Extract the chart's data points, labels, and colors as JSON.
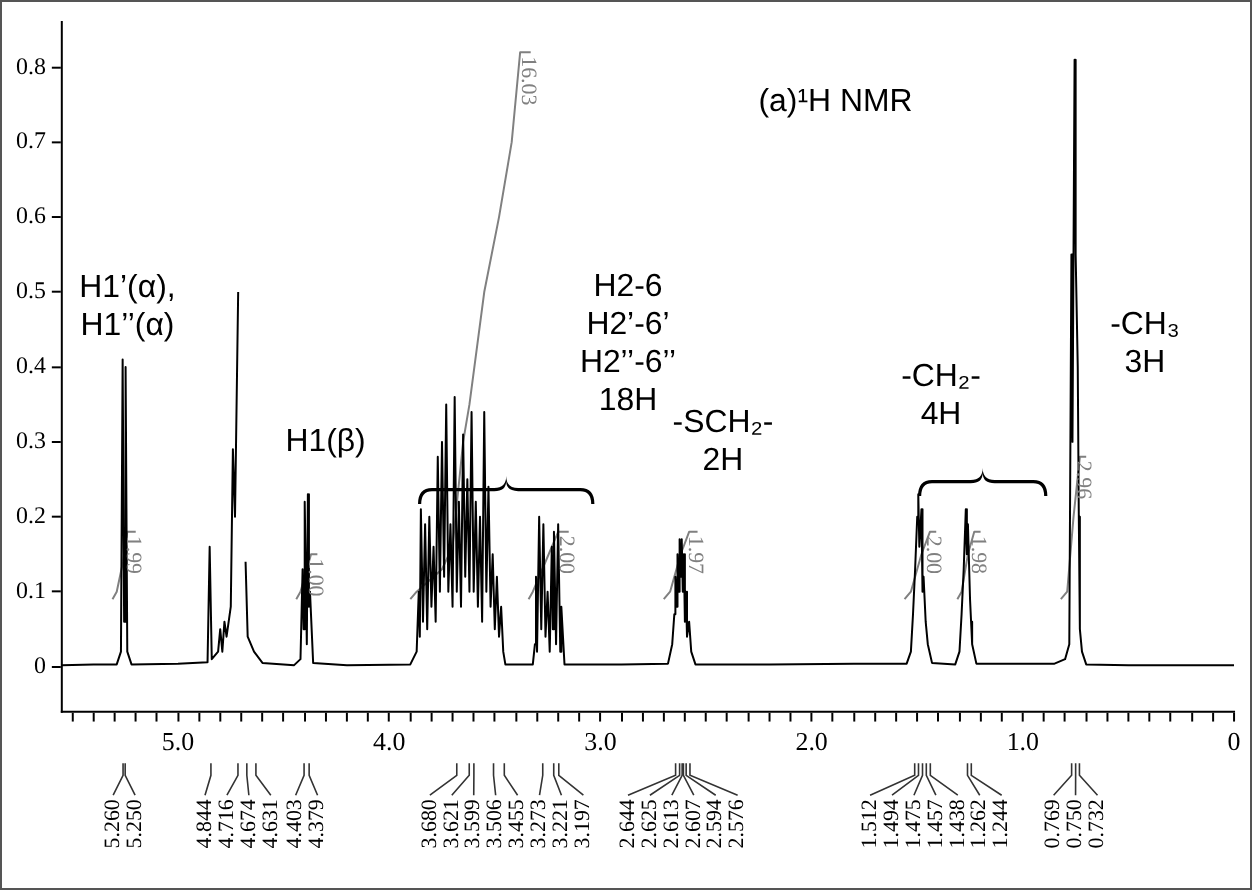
{
  "chart_data": {
    "type": "line",
    "title": "(a)¹H NMR",
    "xlim": [
      5.55,
      0
    ],
    "ylim": [
      -0.06,
      0.86
    ],
    "xticks": [
      {
        "value": 5,
        "label": "5.0"
      },
      {
        "value": 4,
        "label": "4.0"
      },
      {
        "value": 3,
        "label": "3.0"
      },
      {
        "value": 2,
        "label": "2.0"
      },
      {
        "value": 1,
        "label": "1.0"
      },
      0,
      {
        "value": 5.5,
        "label": null
      },
      {
        "value": 5.4,
        "label": null
      },
      {
        "value": 5.3,
        "label": null
      },
      {
        "value": 5.2,
        "label": null
      },
      {
        "value": 5.1,
        "label": null
      },
      {
        "value": 4.9,
        "label": null
      },
      {
        "value": 4.8,
        "label": null
      },
      {
        "value": 4.7,
        "label": null
      },
      {
        "value": 4.6,
        "label": null
      },
      {
        "value": 4.5,
        "label": null
      },
      {
        "value": 4.4,
        "label": null
      },
      {
        "value": 4.3,
        "label": null
      },
      {
        "value": 4.2,
        "label": null
      },
      {
        "value": 4.1,
        "label": null
      },
      {
        "value": 3.9,
        "label": null
      },
      {
        "value": 3.8,
        "label": null
      },
      {
        "value": 3.7,
        "label": null
      },
      {
        "value": 3.6,
        "label": null
      },
      {
        "value": 3.5,
        "label": null
      },
      {
        "value": 3.4,
        "label": null
      },
      {
        "value": 3.3,
        "label": null
      },
      {
        "value": 3.2,
        "label": null
      },
      {
        "value": 3.1,
        "label": null
      },
      {
        "value": 2.9,
        "label": null
      },
      {
        "value": 2.8,
        "label": null
      },
      {
        "value": 2.7,
        "label": null
      },
      {
        "value": 2.6,
        "label": null
      },
      {
        "value": 2.5,
        "label": null
      },
      {
        "value": 2.4,
        "label": null
      },
      {
        "value": 2.3,
        "label": null
      },
      {
        "value": 2.2,
        "label": null
      },
      {
        "value": 2.1,
        "label": null
      },
      {
        "value": 1.9,
        "label": null
      },
      {
        "value": 1.8,
        "label": null
      },
      {
        "value": 1.7,
        "label": null
      },
      {
        "value": 1.6,
        "label": null
      },
      {
        "value": 1.5,
        "label": null
      },
      {
        "value": 1.4,
        "label": null
      },
      {
        "value": 1.3,
        "label": null
      },
      {
        "value": 1.2,
        "label": null
      },
      {
        "value": 1.1,
        "label": null
      },
      {
        "value": 0.9,
        "label": null
      },
      {
        "value": 0.8,
        "label": null
      },
      {
        "value": 0.7,
        "label": null
      },
      {
        "value": 0.6,
        "label": null
      },
      {
        "value": 0.5,
        "label": null
      },
      {
        "value": 0.4,
        "label": null
      },
      {
        "value": 0.3,
        "label": null
      },
      {
        "value": 0.2,
        "label": null
      },
      {
        "value": 0.1,
        "label": null
      }
    ],
    "yticks": [
      0,
      0.1,
      0.2,
      0.3,
      0.4,
      0.5,
      0.6,
      0.7,
      0.8
    ],
    "grid": false,
    "legend": false,
    "marker": "none",
    "line_style": "solid",
    "series": [
      {
        "color": "#000000",
        "x": [
          5.55,
          5.4,
          5.29,
          5.27,
          5.262,
          5.255,
          5.248,
          5.24,
          5.22,
          5.0,
          4.86,
          4.85,
          4.84,
          4.81,
          4.8,
          4.79,
          4.78,
          4.77,
          4.75,
          4.74,
          4.73,
          4.715,
          4.705,
          4.69,
          4.68,
          4.67,
          4.64,
          4.6,
          4.45,
          4.42,
          4.41,
          4.405,
          4.4,
          4.39,
          4.385,
          4.38,
          4.375,
          4.36,
          4.2,
          3.9,
          3.87,
          3.86,
          3.855,
          3.85,
          3.84,
          3.83,
          3.82,
          3.81,
          3.8,
          3.79,
          3.78,
          3.77,
          3.76,
          3.75,
          3.74,
          3.73,
          3.72,
          3.71,
          3.7,
          3.69,
          3.68,
          3.67,
          3.66,
          3.65,
          3.64,
          3.63,
          3.62,
          3.61,
          3.6,
          3.59,
          3.58,
          3.57,
          3.56,
          3.55,
          3.54,
          3.53,
          3.52,
          3.51,
          3.5,
          3.49,
          3.48,
          3.47,
          3.46,
          3.45,
          3.32,
          3.31,
          3.305,
          3.3,
          3.29,
          3.28,
          3.27,
          3.26,
          3.25,
          3.24,
          3.23,
          3.225,
          3.22,
          3.21,
          3.2,
          3.19,
          3.185,
          3.17,
          2.9,
          2.68,
          2.66,
          2.65,
          2.645,
          2.64,
          2.635,
          2.63,
          2.625,
          2.62,
          2.615,
          2.61,
          2.605,
          2.6,
          2.595,
          2.59,
          2.58,
          2.57,
          2.55,
          2.2,
          1.8,
          1.55,
          1.53,
          1.52,
          1.51,
          1.5,
          1.495,
          1.49,
          1.48,
          1.475,
          1.47,
          1.46,
          1.45,
          1.43,
          1.32,
          1.3,
          1.29,
          1.28,
          1.27,
          1.265,
          1.26,
          1.25,
          1.245,
          1.24,
          1.22,
          1.0,
          0.85,
          0.8,
          0.78,
          0.77,
          0.765,
          0.755,
          0.75,
          0.74,
          0.735,
          0.73,
          0.72,
          0.7,
          0.5,
          0
        ],
        "values": [
          0.002,
          0.003,
          0.003,
          0.02,
          0.41,
          0.06,
          0.4,
          0.02,
          0.003,
          0.004,
          0.006,
          0.16,
          0.01,
          0.02,
          0.05,
          0.02,
          0.06,
          0.04,
          0.08,
          0.29,
          0.2,
          0.5,
          null,
          null,
          0.14,
          0.04,
          0.02,
          0.005,
          0.002,
          0.01,
          0.13,
          0.05,
          0.22,
          0.03,
          0.23,
          0.08,
          0.1,
          0.005,
          0.002,
          0.003,
          0.02,
          0.1,
          0.04,
          0.21,
          0.06,
          0.19,
          0.05,
          0.2,
          0.08,
          0.16,
          0.06,
          0.28,
          0.1,
          0.3,
          0.12,
          0.35,
          0.1,
          0.19,
          0.08,
          0.36,
          0.1,
          0.22,
          0.08,
          0.31,
          0.12,
          0.25,
          0.1,
          0.34,
          0.1,
          0.22,
          0.08,
          0.2,
          0.06,
          0.34,
          0.1,
          0.24,
          0.08,
          0.15,
          0.05,
          0.12,
          0.04,
          0.08,
          0.02,
          0.003,
          0.003,
          0.03,
          0.12,
          0.02,
          0.2,
          0.05,
          0.19,
          0.04,
          0.1,
          0.02,
          0.16,
          0.05,
          0.18,
          0.03,
          0.19,
          0.02,
          0.08,
          0.003,
          0.003,
          0.004,
          0.03,
          0.07,
          0.12,
          0.08,
          0.15,
          0.1,
          0.17,
          0.12,
          0.17,
          0.1,
          0.15,
          0.06,
          0.1,
          0.04,
          0.06,
          0.02,
          0.003,
          0.003,
          0.004,
          0.004,
          0.02,
          0.07,
          0.13,
          0.2,
          0.23,
          0.16,
          0.21,
          0.1,
          0.12,
          0.06,
          0.03,
          0.005,
          0.003,
          0.02,
          0.07,
          0.13,
          0.21,
          0.15,
          0.19,
          0.09,
          0.06,
          0.03,
          0.004,
          0.004,
          0.004,
          0.01,
          0.03,
          0.55,
          0.3,
          0.81,
          0.55,
          0.4,
          0.2,
          0.05,
          0.02,
          0.003,
          0.002,
          0.002
        ]
      },
      {
        "name": "1.99",
        "color": "#808080",
        "x": [
          5.31,
          5.29,
          5.26,
          5.24,
          5.2
        ],
        "values": [
          0.09,
          0.1,
          0.14,
          0.18,
          0.18
        ]
      },
      {
        "name": "1.00",
        "color": "#808080",
        "x": [
          4.44,
          4.42,
          4.39,
          4.37,
          4.34
        ],
        "values": [
          0.09,
          0.1,
          0.13,
          0.15,
          0.15
        ]
      },
      {
        "name": "16.03",
        "color": "#808080",
        "x": [
          3.9,
          3.87,
          3.75,
          3.7,
          3.65,
          3.62,
          3.55,
          3.48,
          3.42,
          3.38,
          3.33
        ],
        "values": [
          0.09,
          0.1,
          0.13,
          0.16,
          0.3,
          0.35,
          0.5,
          0.6,
          0.7,
          0.82,
          0.82
        ]
      },
      {
        "name": "2.00",
        "color": "#808080",
        "x": [
          3.34,
          3.32,
          3.26,
          3.2,
          3.15
        ],
        "values": [
          0.09,
          0.1,
          0.14,
          0.18,
          0.18
        ]
      },
      {
        "name": "1.97",
        "color": "#808080",
        "x": [
          2.7,
          2.67,
          2.62,
          2.58,
          2.54
        ],
        "values": [
          0.09,
          0.1,
          0.15,
          0.18,
          0.18
        ]
      },
      {
        "name": "2.00",
        "color": "#808080",
        "x": [
          1.56,
          1.53,
          1.48,
          1.44,
          1.41
        ],
        "values": [
          0.09,
          0.1,
          0.15,
          0.18,
          0.18
        ]
      },
      {
        "name": "1.98",
        "color": "#808080",
        "x": [
          1.31,
          1.29,
          1.26,
          1.23,
          1.2
        ],
        "values": [
          0.09,
          0.1,
          0.15,
          0.18,
          0.18
        ]
      },
      {
        "name": "2.96",
        "color": "#808080",
        "x": [
          0.82,
          0.79,
          0.76,
          0.73,
          0.7
        ],
        "values": [
          0.09,
          0.1,
          0.2,
          0.28,
          0.28
        ]
      }
    ],
    "annotations": [
      "H1’(α),\nH1’’(α)",
      "H1(β)",
      "H2-6\nH2’-6’\nH2’’-6’’\n18H",
      "-SCH₂-\n2H",
      "-CH₂-\n4H",
      "-CH₃\n3H",
      {
        "text": "5.260",
        "x": 5.26
      },
      {
        "text": "5.250",
        "x": 5.25
      },
      {
        "text": "4.844",
        "x": 4.844
      },
      {
        "text": "4.716",
        "x": 4.716
      },
      {
        "text": "4.674",
        "x": 4.674
      },
      {
        "text": "4.631",
        "x": 4.631
      },
      {
        "text": "4.403",
        "x": 4.403
      },
      {
        "text": "4.379",
        "x": 4.379
      },
      {
        "text": "3.680",
        "x": 3.68
      },
      {
        "text": "3.621",
        "x": 3.621
      },
      {
        "text": "3.599",
        "x": 3.599
      },
      {
        "text": "3.506",
        "x": 3.506
      },
      {
        "text": "3.455",
        "x": 3.455
      },
      {
        "text": "3.273",
        "x": 3.273
      },
      {
        "text": "3.221",
        "x": 3.221
      },
      {
        "text": "3.197",
        "x": 3.197
      },
      {
        "text": "2.644",
        "x": 2.644
      },
      {
        "text": "2.625",
        "x": 2.625
      },
      {
        "text": "2.613",
        "x": 2.613
      },
      {
        "text": "2.607",
        "x": 2.607
      },
      {
        "text": "2.594",
        "x": 2.594
      },
      {
        "text": "2.576",
        "x": 2.576
      },
      {
        "text": "1.512",
        "x": 1.512
      },
      {
        "text": "1.494",
        "x": 1.494
      },
      {
        "text": "1.475",
        "x": 1.475
      },
      {
        "text": "1.457",
        "x": 1.457
      },
      {
        "text": "1.438",
        "x": 1.438
      },
      {
        "text": "1.262",
        "x": 1.262
      },
      {
        "text": "1.244",
        "x": 1.244
      },
      {
        "text": "0.769",
        "x": 0.769
      },
      {
        "text": "0.750",
        "x": 0.75
      },
      {
        "text": "0.732",
        "x": 0.732
      }
    ]
  }
}
